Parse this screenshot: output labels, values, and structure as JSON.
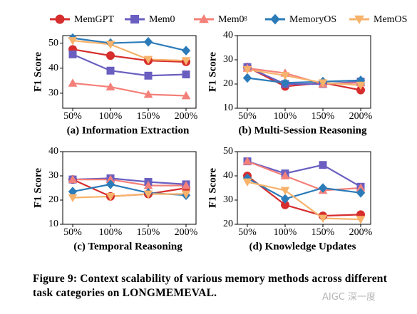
{
  "legend": [
    {
      "name": "MemGPT",
      "color": "#d62d2d",
      "marker": "circle"
    },
    {
      "name": "Mem0",
      "color": "#6a5fc1",
      "marker": "square"
    },
    {
      "name": "Mem0ᵍ",
      "color": "#f4807a",
      "marker": "triangle-up"
    },
    {
      "name": "MemoryOS",
      "color": "#2b7bb9",
      "marker": "diamond"
    },
    {
      "name": "MemOS",
      "color": "#f7b36b",
      "marker": "triangle-down"
    }
  ],
  "chart_data": [
    {
      "type": "line",
      "title": "(a) Information Extraction",
      "y_label": "F1 Score",
      "categories": [
        "50%",
        "100%",
        "150%",
        "200%"
      ],
      "ylim": [
        24,
        53
      ],
      "yticks": [
        30,
        40,
        50
      ],
      "series": [
        {
          "values": [
            47.5,
            45,
            43,
            42.5
          ]
        },
        {
          "values": [
            45.5,
            39,
            37,
            37.5
          ]
        },
        {
          "values": [
            34,
            32.5,
            29.5,
            29
          ]
        },
        {
          "values": [
            52,
            50,
            50.5,
            47
          ]
        },
        {
          "values": [
            51,
            49.5,
            43.5,
            43
          ]
        }
      ]
    },
    {
      "type": "line",
      "title": "(b) Multi-Session Reasoning",
      "y_label": "F1 Score",
      "categories": [
        "50%",
        "100%",
        "150%",
        "200%"
      ],
      "ylim": [
        10,
        40
      ],
      "yticks": [
        10,
        20,
        30,
        40
      ],
      "series": [
        {
          "values": [
            27,
            19,
            20.5,
            17.5
          ]
        },
        {
          "values": [
            27,
            20,
            20,
            21
          ]
        },
        {
          "values": [
            26.5,
            24.5,
            20,
            20.5
          ]
        },
        {
          "values": [
            22.5,
            20.5,
            21,
            21.5
          ]
        },
        {
          "values": [
            26,
            23.5,
            20.5,
            19.5
          ]
        }
      ]
    },
    {
      "type": "line",
      "title": "(c) Temporal Reasoning",
      "y_label": "F1 Score",
      "categories": [
        "50%",
        "100%",
        "150%",
        "200%"
      ],
      "ylim": [
        10,
        40
      ],
      "yticks": [
        10,
        20,
        30,
        40
      ],
      "series": [
        {
          "values": [
            28.5,
            21.5,
            22.5,
            25
          ]
        },
        {
          "values": [
            28.5,
            29,
            27.5,
            26.5
          ]
        },
        {
          "values": [
            28.5,
            28.5,
            26,
            26
          ]
        },
        {
          "values": [
            23.5,
            26.5,
            23,
            22
          ]
        },
        {
          "values": [
            21,
            21.5,
            22.5,
            22.5
          ]
        }
      ]
    },
    {
      "type": "line",
      "title": "(d) Knowledge Updates",
      "y_label": "F1 Score",
      "categories": [
        "50%",
        "100%",
        "150%",
        "200%"
      ],
      "ylim": [
        20,
        50
      ],
      "yticks": [
        20,
        30,
        40,
        50
      ],
      "series": [
        {
          "values": [
            40,
            28,
            23.5,
            24
          ]
        },
        {
          "values": [
            46,
            41,
            44.5,
            35.5
          ]
        },
        {
          "values": [
            46,
            40,
            34,
            35
          ]
        },
        {
          "values": [
            39,
            30.5,
            35,
            33
          ]
        },
        {
          "values": [
            37.5,
            34,
            22.5,
            22
          ]
        }
      ]
    }
  ],
  "caption": "Figure 9: Context scalability of various memory methods across different task categories on LONGMEMEVAL.",
  "watermark": "AIGC 深一度"
}
